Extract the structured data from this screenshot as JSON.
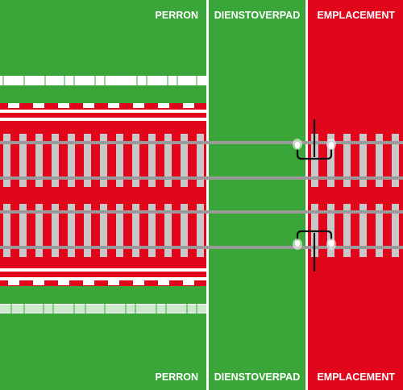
{
  "zones": {
    "perron": "PERRON",
    "dienstoverpad": "DIENSTOVERPAD",
    "emplacement": "EMPLACEMENT"
  },
  "colors": {
    "green": "#3aa63a",
    "red": "#e2061c",
    "white": "#ffffff",
    "sleeper": "#c8c8c8",
    "rail": "#9a9a9a",
    "signal": "#111111"
  },
  "icons": {
    "signal": "signal-post-icon",
    "lamp": "signal-lamp-icon"
  }
}
